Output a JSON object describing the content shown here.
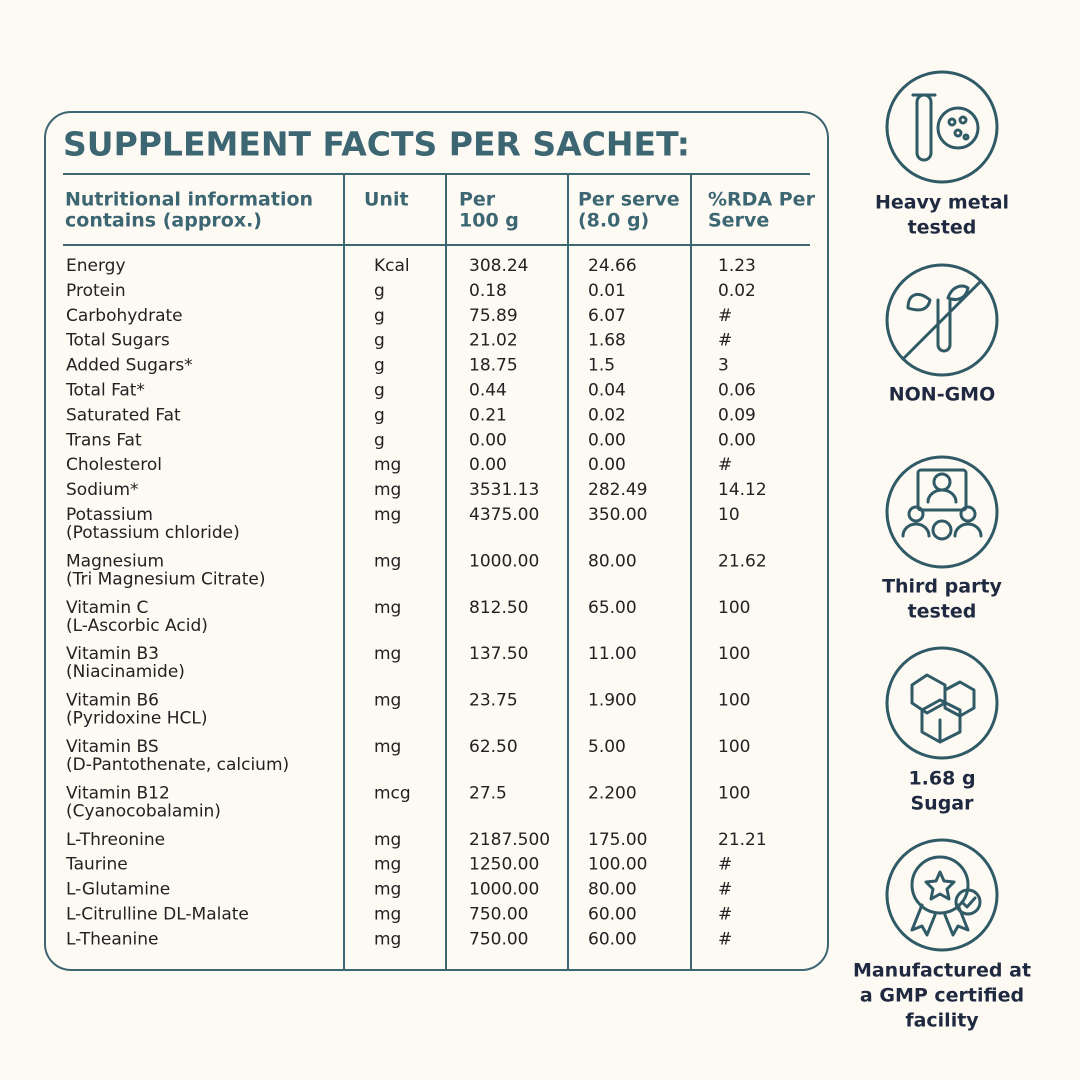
{
  "title": "SUPPLEMENT FACTS PER SACHET:",
  "table": {
    "headers": [
      [
        "Nutritional information",
        "contains (approx.)"
      ],
      [
        "Unit"
      ],
      [
        "Per",
        "100 g"
      ],
      [
        "Per serve",
        "(8.0 g)"
      ],
      [
        "%RDA Per",
        "Serve"
      ]
    ],
    "rows": [
      [
        [
          "Energy"
        ],
        "Kcal",
        "308.24",
        "24.66",
        "1.23"
      ],
      [
        [
          "Protein"
        ],
        "g",
        "0.18",
        "0.01",
        "0.02"
      ],
      [
        [
          "Carbohydrate"
        ],
        "g",
        "75.89",
        "6.07",
        "#"
      ],
      [
        [
          "Total Sugars"
        ],
        "g",
        "21.02",
        "1.68",
        "#"
      ],
      [
        [
          "Added Sugars*"
        ],
        "g",
        "18.75",
        "1.5",
        "3"
      ],
      [
        [
          "Total Fat*"
        ],
        "g",
        "0.44",
        "0.04",
        "0.06"
      ],
      [
        [
          "Saturated Fat"
        ],
        "g",
        "0.21",
        "0.02",
        "0.09"
      ],
      [
        [
          "Trans Fat"
        ],
        "g",
        "0.00",
        "0.00",
        "0.00"
      ],
      [
        [
          "Cholesterol"
        ],
        "mg",
        "0.00",
        "0.00",
        "#"
      ],
      [
        [
          "Sodium*"
        ],
        "mg",
        "3531.13",
        "282.49",
        "14.12"
      ],
      [
        [
          "Potassium",
          "(Potassium chloride)"
        ],
        "mg",
        "4375.00",
        "350.00",
        "10"
      ],
      [
        [
          "Magnesium",
          "(Tri Magnesium Citrate)"
        ],
        "mg",
        "1000.00",
        "80.00",
        "21.62"
      ],
      [
        [
          "Vitamin C",
          "(L-Ascorbic Acid)"
        ],
        "mg",
        "812.50",
        "65.00",
        "100"
      ],
      [
        [
          "Vitamin B3",
          "(Niacinamide)"
        ],
        "mg",
        "137.50",
        "11.00",
        "100"
      ],
      [
        [
          "Vitamin B6",
          "(Pyridoxine HCL)"
        ],
        "mg",
        "23.75",
        "1.900",
        "100"
      ],
      [
        [
          "Vitamin BS",
          "(D-Pantothenate, calcium)"
        ],
        "mg",
        "62.50",
        "5.00",
        "100"
      ],
      [
        [
          "Vitamin B12",
          "(Cyanocobalamin)"
        ],
        "mcg",
        "27.5",
        "2.200",
        "100"
      ],
      [
        [
          "L-Threonine"
        ],
        "mg",
        "2187.500",
        "175.00",
        "21.21"
      ],
      [
        [
          "Taurine"
        ],
        "mg",
        "1250.00",
        "100.00",
        "#"
      ],
      [
        [
          "L-Glutamine"
        ],
        "mg",
        "1000.00",
        "80.00",
        "#"
      ],
      [
        [
          "L-Citrulline DL-Malate"
        ],
        "mg",
        "750.00",
        "60.00",
        "#"
      ],
      [
        [
          "L-Theanine"
        ],
        "mg",
        "750.00",
        "60.00",
        "#"
      ]
    ]
  },
  "badges": [
    [
      "Heavy metal",
      "tested"
    ],
    [
      "NON-GMO"
    ],
    [
      "Third party",
      "tested"
    ],
    [
      "1.68 g",
      "Sugar"
    ],
    [
      "Manufactured at",
      "a GMP certified",
      "facility"
    ]
  ]
}
